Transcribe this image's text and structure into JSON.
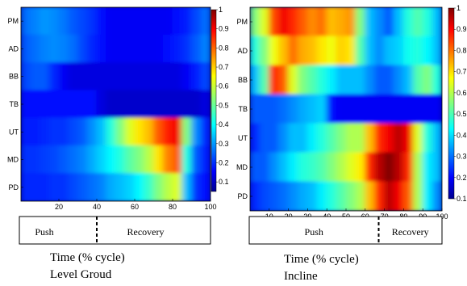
{
  "chart_data": [
    {
      "type": "heatmap",
      "panel": "left",
      "muscles": [
        "PM",
        "AD",
        "BB",
        "TB",
        "UT",
        "MD",
        "PD"
      ],
      "x_ticks": [
        20,
        40,
        60,
        80,
        100
      ],
      "x_range": [
        0,
        100
      ],
      "colorbar": {
        "min": 0.05,
        "max": 1,
        "ticks": [
          "1",
          "0.9",
          "0.8",
          "0.7",
          "0.6",
          "0.5",
          "0.4",
          "0.3",
          "0.2",
          "0.1"
        ]
      },
      "columns_x": [
        2.5,
        7.5,
        12.5,
        17.5,
        22.5,
        27.5,
        32.5,
        37.5,
        42.5,
        47.5,
        52.5,
        57.5,
        62.5,
        67.5,
        72.5,
        77.5,
        82.5,
        87.5,
        92.5,
        97.5
      ],
      "values": [
        [
          0.22,
          0.24,
          0.26,
          0.25,
          0.23,
          0.2,
          0.18,
          0.16,
          0.12,
          0.1,
          0.1,
          0.1,
          0.1,
          0.1,
          0.1,
          0.1,
          0.12,
          0.14,
          0.18,
          0.22
        ],
        [
          0.2,
          0.22,
          0.24,
          0.25,
          0.24,
          0.22,
          0.18,
          0.15,
          0.12,
          0.1,
          0.1,
          0.1,
          0.1,
          0.1,
          0.1,
          0.12,
          0.14,
          0.16,
          0.2,
          0.24
        ],
        [
          0.18,
          0.2,
          0.2,
          0.15,
          0.1,
          0.08,
          0.08,
          0.08,
          0.08,
          0.08,
          0.08,
          0.08,
          0.08,
          0.08,
          0.08,
          0.08,
          0.08,
          0.1,
          0.14,
          0.18
        ],
        [
          0.12,
          0.12,
          0.12,
          0.12,
          0.12,
          0.12,
          0.12,
          0.12,
          0.08,
          0.06,
          0.06,
          0.06,
          0.06,
          0.06,
          0.06,
          0.06,
          0.06,
          0.06,
          0.06,
          0.08
        ],
        [
          0.14,
          0.14,
          0.15,
          0.16,
          0.16,
          0.18,
          0.2,
          0.25,
          0.3,
          0.4,
          0.5,
          0.6,
          0.66,
          0.7,
          0.8,
          0.86,
          0.9,
          0.5,
          0.25,
          0.15
        ],
        [
          0.16,
          0.16,
          0.17,
          0.18,
          0.2,
          0.22,
          0.24,
          0.28,
          0.32,
          0.36,
          0.4,
          0.46,
          0.5,
          0.56,
          0.66,
          0.76,
          0.8,
          0.4,
          0.2,
          0.14
        ],
        [
          0.15,
          0.15,
          0.15,
          0.16,
          0.16,
          0.18,
          0.2,
          0.22,
          0.24,
          0.28,
          0.3,
          0.32,
          0.36,
          0.42,
          0.5,
          0.56,
          0.6,
          0.3,
          0.16,
          0.12
        ]
      ],
      "phase_boundary": 40,
      "phases": [
        "Push",
        "Recovery"
      ],
      "xlabel": "Time (% cycle)",
      "caption": "Level Groud"
    },
    {
      "type": "heatmap",
      "panel": "right",
      "muscles": [
        "PM",
        "AD",
        "BB",
        "TB",
        "UT",
        "MD",
        "PD"
      ],
      "x_ticks": [
        10,
        20,
        30,
        40,
        50,
        60,
        70,
        80,
        90,
        100
      ],
      "x_range": [
        0,
        100
      ],
      "colorbar": {
        "min": 0.1,
        "max": 1,
        "ticks": [
          "1",
          "0.9",
          "0.8",
          "0.7",
          "0.6",
          "0.5",
          "0.4",
          "0.3",
          "0.2",
          "0.1"
        ]
      },
      "columns_x": [
        2.5,
        7.5,
        12.5,
        17.5,
        22.5,
        27.5,
        32.5,
        37.5,
        42.5,
        47.5,
        52.5,
        57.5,
        62.5,
        67.5,
        72.5,
        77.5,
        82.5,
        87.5,
        92.5,
        97.5
      ],
      "values": [
        [
          0.5,
          0.6,
          0.82,
          0.9,
          0.85,
          0.8,
          0.75,
          0.78,
          0.7,
          0.72,
          0.74,
          0.5,
          0.3,
          0.25,
          0.2,
          0.3,
          0.4,
          0.45,
          0.4,
          0.3
        ],
        [
          0.4,
          0.5,
          0.62,
          0.7,
          0.78,
          0.72,
          0.7,
          0.66,
          0.62,
          0.68,
          0.66,
          0.45,
          0.3,
          0.25,
          0.3,
          0.32,
          0.38,
          0.4,
          0.36,
          0.3
        ],
        [
          0.3,
          0.45,
          0.85,
          0.8,
          0.6,
          0.5,
          0.45,
          0.4,
          0.35,
          0.3,
          0.3,
          0.3,
          0.25,
          0.2,
          0.2,
          0.25,
          0.3,
          0.45,
          0.5,
          0.4
        ],
        [
          0.2,
          0.2,
          0.2,
          0.22,
          0.25,
          0.28,
          0.3,
          0.32,
          0.12,
          0.1,
          0.1,
          0.1,
          0.1,
          0.1,
          0.1,
          0.1,
          0.1,
          0.1,
          0.1,
          0.1
        ],
        [
          0.15,
          0.2,
          0.2,
          0.25,
          0.3,
          0.3,
          0.35,
          0.4,
          0.45,
          0.5,
          0.55,
          0.55,
          0.7,
          0.85,
          0.9,
          0.95,
          0.9,
          0.6,
          0.4,
          0.3
        ],
        [
          0.2,
          0.2,
          0.25,
          0.3,
          0.35,
          0.4,
          0.42,
          0.45,
          0.5,
          0.55,
          0.6,
          0.65,
          0.85,
          0.95,
          1,
          0.95,
          0.85,
          0.55,
          0.35,
          0.3
        ],
        [
          0.15,
          0.18,
          0.2,
          0.22,
          0.25,
          0.28,
          0.3,
          0.35,
          0.4,
          0.45,
          0.5,
          0.55,
          0.7,
          0.85,
          0.95,
          0.9,
          0.8,
          0.55,
          0.35,
          0.25
        ]
      ],
      "phase_boundary": 67,
      "phases": [
        "Push",
        "Recovery"
      ],
      "xlabel": "Time (% cycle)",
      "caption": "Incline"
    }
  ]
}
